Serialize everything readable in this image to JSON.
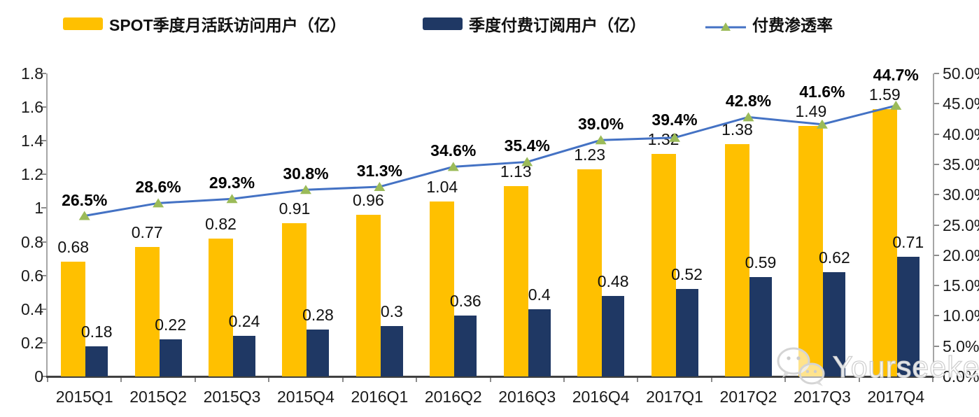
{
  "legend": {
    "mau": {
      "label": "SPOT季度月活跃访问用户（亿）",
      "swatch_color": "#FFC000"
    },
    "subs": {
      "label": "季度付费订阅用户（亿）",
      "swatch_color": "#1F3864"
    },
    "penetration": {
      "label": "付费渗透率",
      "line_color": "#4472C4",
      "marker_color": "#9BBB59"
    }
  },
  "watermark": {
    "icon": "wechat-icon",
    "text": "Yourseeker"
  },
  "colors": {
    "bar_mau": "#FFC000",
    "bar_subs": "#1F3864",
    "line": "#4472C4",
    "marker": "#9BBB59",
    "axis": "#a6a6a6",
    "axis_bottom": "#404040",
    "tick": "#8c8c8c",
    "text": "#1a1a1a"
  },
  "chart_data": {
    "type": "bar",
    "subtype": "combo-bar-line-dual-axis",
    "title": "",
    "xlabel": "",
    "ylabel_left": "",
    "ylabel_right": "",
    "grid": false,
    "legend_position": "top",
    "categories": [
      "2015Q1",
      "2015Q2",
      "2015Q3",
      "2015Q4",
      "2016Q1",
      "2016Q2",
      "2016Q3",
      "2016Q4",
      "2017Q1",
      "2017Q2",
      "2017Q3",
      "2017Q4"
    ],
    "series": [
      {
        "name": "SPOT季度月活跃访问用户（亿）",
        "type": "bar",
        "axis": "left",
        "color": "#FFC000",
        "values": [
          0.68,
          0.77,
          0.82,
          0.91,
          0.96,
          1.04,
          1.13,
          1.23,
          1.32,
          1.38,
          1.49,
          1.59
        ],
        "labels": [
          "0.68",
          "0.77",
          "0.82",
          "0.91",
          "0.96",
          "1.04",
          "1.13",
          "1.23",
          "1.32",
          "1.38",
          "1.49",
          "1.59"
        ]
      },
      {
        "name": "季度付费订阅用户（亿）",
        "type": "bar",
        "axis": "left",
        "color": "#1F3864",
        "values": [
          0.18,
          0.22,
          0.24,
          0.28,
          0.3,
          0.36,
          0.4,
          0.48,
          0.52,
          0.59,
          0.62,
          0.71
        ],
        "labels": [
          "0.18",
          "0.22",
          "0.24",
          "0.28",
          "0.3",
          "0.36",
          "0.4",
          "0.48",
          "0.52",
          "0.59",
          "0.62",
          "0.71"
        ]
      },
      {
        "name": "付费渗透率",
        "type": "line",
        "axis": "right",
        "color": "#4472C4",
        "marker": "triangle",
        "marker_color": "#9BBB59",
        "values": [
          26.5,
          28.6,
          29.3,
          30.8,
          31.3,
          34.6,
          35.4,
          39.0,
          39.4,
          42.8,
          41.6,
          44.7
        ],
        "labels": [
          "26.5%",
          "28.6%",
          "29.3%",
          "30.8%",
          "31.3%",
          "34.6%",
          "35.4%",
          "39.0%",
          "39.4%",
          "42.8%",
          "41.6%",
          "44.7%"
        ]
      }
    ],
    "left_axis": {
      "min": 0,
      "max": 1.8,
      "step": 0.2,
      "ticks": [
        "1.8",
        "1.6",
        "1.4",
        "1.2",
        "1",
        "0.8",
        "0.6",
        "0.4",
        "0.2",
        "0"
      ]
    },
    "right_axis": {
      "min": 0,
      "max": 50,
      "step": 5,
      "ticks": [
        "50.0%",
        "45.0%",
        "40.0%",
        "35.0%",
        "30.0%",
        "25.0%",
        "20.0%",
        "15.0%",
        "10.0%",
        "5.0%",
        "0.0%"
      ]
    }
  }
}
